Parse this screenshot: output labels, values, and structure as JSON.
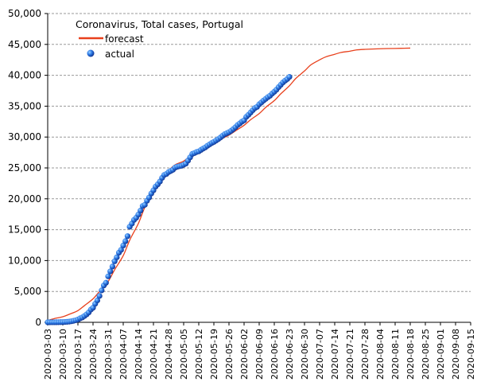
{
  "chart_data": {
    "type": "scatter",
    "title": "Coronavirus, Total cases, Portugal",
    "xlabel": "",
    "ylabel": "",
    "ylim": [
      0,
      50000
    ],
    "y_ticks": [
      0,
      5000,
      10000,
      15000,
      20000,
      25000,
      30000,
      35000,
      40000,
      45000,
      50000
    ],
    "y_tick_labels": [
      "0",
      "5,000",
      "10,000",
      "15,000",
      "20,000",
      "25,000",
      "30,000",
      "35,000",
      "40,000",
      "45,000",
      "50,000"
    ],
    "x_start": "2020-03-03",
    "xlim": [
      "2020-03-03",
      "2020-09-15"
    ],
    "x_ticks": [
      "2020-03-03",
      "2020-03-10",
      "2020-03-17",
      "2020-03-24",
      "2020-03-31",
      "2020-04-07",
      "2020-04-14",
      "2020-04-21",
      "2020-04-28",
      "2020-05-05",
      "2020-05-12",
      "2020-05-19",
      "2020-05-26",
      "2020-06-02",
      "2020-06-09",
      "2020-06-16",
      "2020-06-23",
      "2020-06-30",
      "2020-07-07",
      "2020-07-14",
      "2020-07-21",
      "2020-07-28",
      "2020-08-04",
      "2020-08-11",
      "2020-08-18",
      "2020-08-25",
      "2020-09-01",
      "2020-09-08",
      "2020-09-15"
    ],
    "grid": true,
    "legend": {
      "position": "top-left"
    },
    "series": [
      {
        "name": "forecast",
        "kind": "line",
        "color": "#e8401c",
        "x": [
          "2020-03-03",
          "2020-03-06",
          "2020-03-10",
          "2020-03-13",
          "2020-03-17",
          "2020-03-20",
          "2020-03-24",
          "2020-03-27",
          "2020-03-31",
          "2020-04-03",
          "2020-04-07",
          "2020-04-10",
          "2020-04-14",
          "2020-04-17",
          "2020-04-21",
          "2020-04-24",
          "2020-04-28",
          "2020-05-01",
          "2020-05-05",
          "2020-05-08",
          "2020-05-12",
          "2020-05-15",
          "2020-05-19",
          "2020-05-22",
          "2020-05-26",
          "2020-05-29",
          "2020-06-02",
          "2020-06-05",
          "2020-06-09",
          "2020-06-12",
          "2020-06-16",
          "2020-06-19",
          "2020-06-23",
          "2020-06-26",
          "2020-06-30",
          "2020-07-03",
          "2020-07-07",
          "2020-07-10",
          "2020-07-14",
          "2020-07-17",
          "2020-07-21",
          "2020-07-24",
          "2020-07-28",
          "2020-08-04",
          "2020-08-11",
          "2020-08-18"
        ],
        "y": [
          300,
          600,
          900,
          1300,
          1900,
          2700,
          3800,
          5000,
          6600,
          8500,
          10800,
          13300,
          16000,
          18600,
          21200,
          23200,
          24600,
          25500,
          26100,
          26900,
          27600,
          28200,
          28900,
          29600,
          30300,
          31000,
          31900,
          32800,
          33800,
          34800,
          35900,
          37000,
          38300,
          39500,
          40700,
          41700,
          42500,
          43000,
          43400,
          43700,
          43900,
          44100,
          44200,
          44300,
          44350,
          44400
        ]
      },
      {
        "name": "actual",
        "kind": "scatter",
        "color": "#1a5fd6",
        "x": [
          "2020-03-03",
          "2020-03-04",
          "2020-03-05",
          "2020-03-06",
          "2020-03-07",
          "2020-03-08",
          "2020-03-09",
          "2020-03-10",
          "2020-03-11",
          "2020-03-12",
          "2020-03-13",
          "2020-03-14",
          "2020-03-15",
          "2020-03-16",
          "2020-03-17",
          "2020-03-18",
          "2020-03-19",
          "2020-03-20",
          "2020-03-21",
          "2020-03-22",
          "2020-03-23",
          "2020-03-24",
          "2020-03-25",
          "2020-03-26",
          "2020-03-27",
          "2020-03-28",
          "2020-03-29",
          "2020-03-30",
          "2020-03-31",
          "2020-04-01",
          "2020-04-02",
          "2020-04-03",
          "2020-04-04",
          "2020-04-05",
          "2020-04-06",
          "2020-04-07",
          "2020-04-08",
          "2020-04-09",
          "2020-04-10",
          "2020-04-11",
          "2020-04-12",
          "2020-04-13",
          "2020-04-14",
          "2020-04-15",
          "2020-04-16",
          "2020-04-17",
          "2020-04-18",
          "2020-04-19",
          "2020-04-20",
          "2020-04-21",
          "2020-04-22",
          "2020-04-23",
          "2020-04-24",
          "2020-04-25",
          "2020-04-26",
          "2020-04-27",
          "2020-04-28",
          "2020-04-29",
          "2020-04-30",
          "2020-05-01",
          "2020-05-02",
          "2020-05-03",
          "2020-05-04",
          "2020-05-05",
          "2020-05-06",
          "2020-05-07",
          "2020-05-08",
          "2020-05-09",
          "2020-05-10",
          "2020-05-11",
          "2020-05-12",
          "2020-05-13",
          "2020-05-14",
          "2020-05-15",
          "2020-05-16",
          "2020-05-17",
          "2020-05-18",
          "2020-05-19",
          "2020-05-20",
          "2020-05-21",
          "2020-05-22",
          "2020-05-23",
          "2020-05-24",
          "2020-05-25",
          "2020-05-26",
          "2020-05-27",
          "2020-05-28",
          "2020-05-29",
          "2020-05-30",
          "2020-05-31",
          "2020-06-01",
          "2020-06-02",
          "2020-06-03",
          "2020-06-04",
          "2020-06-05",
          "2020-06-06",
          "2020-06-07",
          "2020-06-08",
          "2020-06-09",
          "2020-06-10",
          "2020-06-11",
          "2020-06-12",
          "2020-06-13",
          "2020-06-14",
          "2020-06-15",
          "2020-06-16",
          "2020-06-17",
          "2020-06-18",
          "2020-06-19",
          "2020-06-20",
          "2020-06-21",
          "2020-06-22",
          "2020-06-23"
        ],
        "y": [
          2,
          4,
          6,
          9,
          13,
          21,
          30,
          41,
          59,
          78,
          112,
          169,
          245,
          331,
          448,
          642,
          785,
          1020,
          1280,
          1600,
          2060,
          2362,
          2995,
          3544,
          4268,
          5170,
          5962,
          6408,
          7443,
          8251,
          9034,
          9886,
          10524,
          11278,
          11730,
          12442,
          13141,
          13956,
          15472,
          15987,
          16585,
          16934,
          17448,
          18091,
          18841,
          19022,
          19685,
          20206,
          20863,
          21379,
          21982,
          22353,
          22797,
          23392,
          23864,
          24027,
          24322,
          24505,
          24692,
          25045,
          25190,
          25282,
          25351,
          25524,
          25702,
          26182,
          26715,
          27268,
          27406,
          27581,
          27679,
          27913,
          28132,
          28319,
          28583,
          28810,
          29036,
          29209,
          29432,
          29660,
          29912,
          30200,
          30471,
          30623,
          30788,
          31007,
          31292,
          31596,
          31946,
          32203,
          32500,
          32700,
          33261,
          33592,
          33969,
          34351,
          34693,
          34885,
          35306,
          35600,
          35910,
          36180,
          36463,
          36690,
          37036,
          37336,
          37672,
          38089,
          38464,
          38841,
          39133,
          39392,
          39737
        ]
      }
    ]
  }
}
